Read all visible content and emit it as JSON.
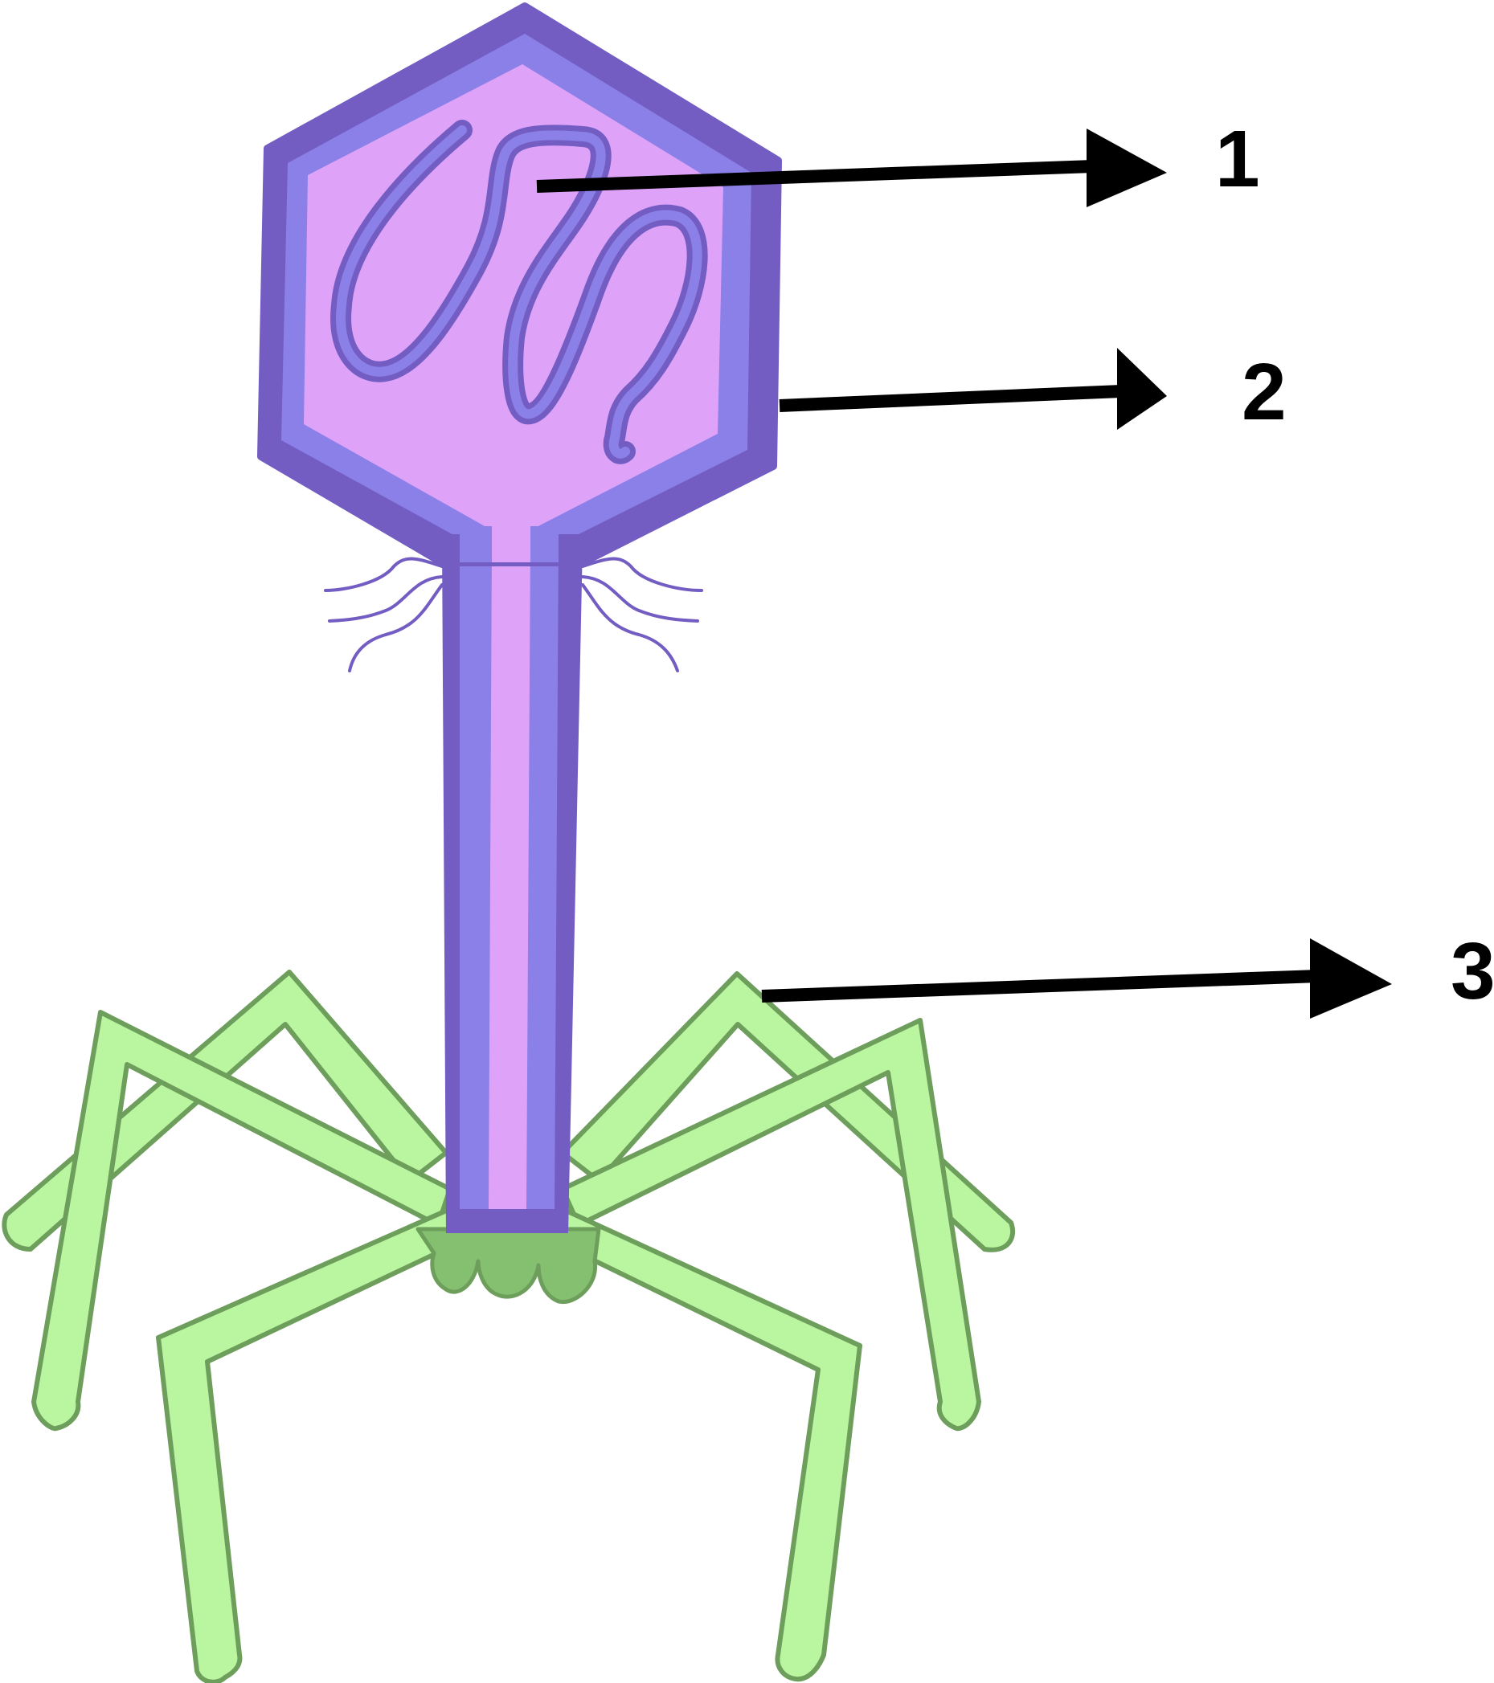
{
  "labels": [
    {
      "id": "1",
      "text": "1"
    },
    {
      "id": "2",
      "text": "2"
    },
    {
      "id": "3",
      "text": "3"
    }
  ],
  "colors": {
    "capsid_outer": "#735dc2",
    "capsid_mid": "#8a80e8",
    "capsid_inner": "#dea3f8",
    "dna_fill": "#8a80e8",
    "dna_stroke": "#735dc2",
    "tail_fill": "#dea3f8",
    "leg_fill": "#baf59f",
    "leg_stroke": "#6d9e5c",
    "baseplate_fill": "#85c070",
    "arrow": "#000000"
  },
  "icons": [
    "bacteriophage-diagram",
    "arrow-right-icon"
  ]
}
